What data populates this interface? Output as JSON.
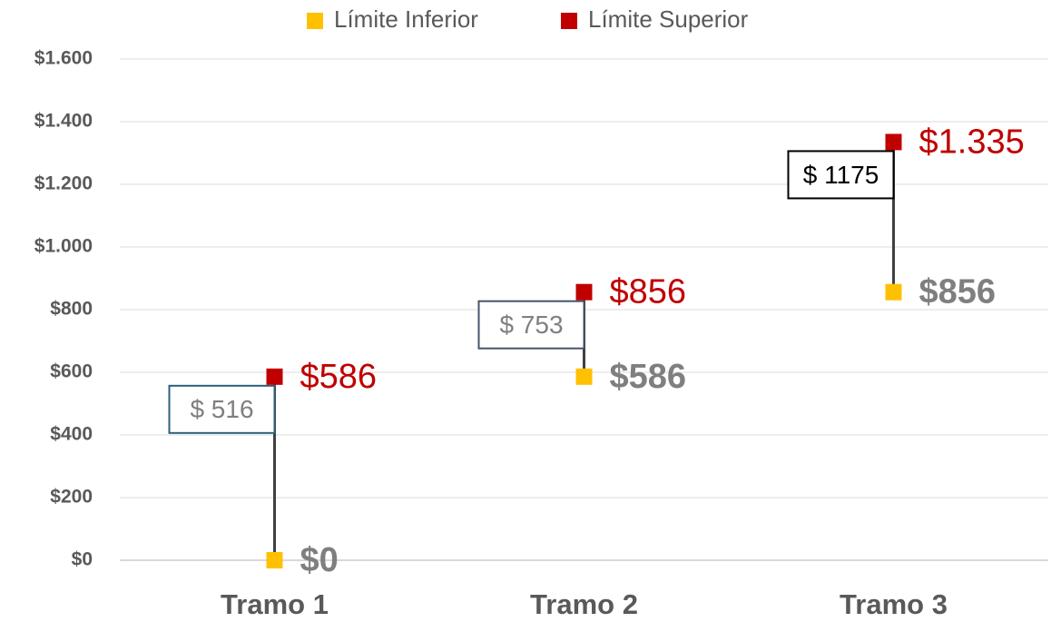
{
  "chart_data": {
    "type": "dot-range",
    "categories": [
      "Tramo 1",
      "Tramo 2",
      "Tramo 3"
    ],
    "series": [
      {
        "name": "Límite Inferior",
        "color": "#FFC000",
        "values": [
          0,
          586,
          856
        ],
        "value_labels": [
          "$0",
          "$586",
          "$856"
        ]
      },
      {
        "name": "Límite Superior",
        "color": "#C00000",
        "values": [
          586,
          856,
          1335
        ],
        "value_labels": [
          "$586",
          "$856",
          "$1.335"
        ]
      }
    ],
    "annotations": [
      "$ 516",
      "$ 753",
      "$ 1175"
    ],
    "ylim": [
      0,
      1600
    ],
    "yticks": [
      {
        "value": 0,
        "label": "$0"
      },
      {
        "value": 200,
        "label": "$200"
      },
      {
        "value": 400,
        "label": "$400"
      },
      {
        "value": 600,
        "label": "$600"
      },
      {
        "value": 800,
        "label": "$800"
      },
      {
        "value": 1000,
        "label": "$1.000"
      },
      {
        "value": 1200,
        "label": "$1.200"
      },
      {
        "value": 1400,
        "label": "$1.400"
      },
      {
        "value": 1600,
        "label": "$1.600"
      }
    ],
    "grid": true,
    "legend": "top"
  }
}
